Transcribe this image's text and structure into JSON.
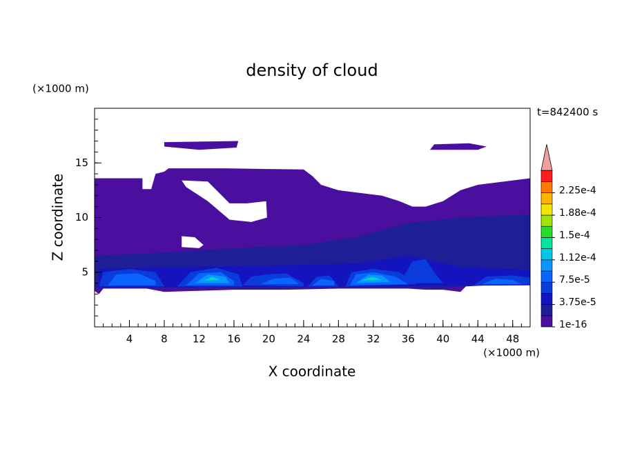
{
  "chart_data": {
    "type": "contour",
    "title": "density of cloud",
    "x_label": "X coordinate",
    "y_label": "Z coordinate",
    "x_unit": "(×1000 m)",
    "y_unit": "(×1000 m)",
    "time_label": "t=842400 s",
    "xlim": [
      0,
      50
    ],
    "ylim": [
      0,
      20
    ],
    "xticks": [
      4,
      8,
      12,
      16,
      20,
      24,
      28,
      32,
      36,
      40,
      44,
      48
    ],
    "yticks": [
      5,
      10,
      15
    ],
    "levels": [
      1e-16,
      1.875e-05,
      3.75e-05,
      5.625e-05,
      7.5e-05,
      9.375e-05,
      0.0001125,
      0.00013125,
      0.00015,
      0.00016875,
      0.0001875,
      0.00020625,
      0.000225,
      0.00024375
    ],
    "colors": [
      "#4b0fa0",
      "#1e1e96",
      "#1414be",
      "#0a3cdc",
      "#0a64ff",
      "#0a96ff",
      "#00c8e6",
      "#00e6a0",
      "#28dc28",
      "#a0e600",
      "#f0e600",
      "#ffb400",
      "#ff7800",
      "#ff1e1e"
    ],
    "extend_color": "#f0a0a0",
    "colorbar_ticks": [
      {
        "value": 1e-16,
        "label": "1e-16"
      },
      {
        "value": 3.75e-05,
        "label": "3.75e-5"
      },
      {
        "value": 7.5e-05,
        "label": "7.5e-5"
      },
      {
        "value": 0.0001125,
        "label": "1.12e-4"
      },
      {
        "value": 0.00015,
        "label": "1.5e-4"
      },
      {
        "value": 0.0001875,
        "label": "1.88e-4"
      },
      {
        "value": 0.000225,
        "label": "2.25e-4"
      }
    ],
    "regions": [
      {
        "value": 1e-16,
        "rings": [
          {
            "x": [
              0,
              0,
              5.5,
              5.5,
              6.5,
              7,
              8,
              8.5,
              15,
              24,
              25,
              26,
              28,
              31,
              33,
              35,
              36.5,
              38,
              40,
              42,
              44,
              47,
              50,
              50,
              43,
              42,
              40,
              38,
              36,
              28,
              22,
              16,
              8,
              6,
              1,
              0.5
            ],
            "z": [
              3.3,
              13.6,
              13.6,
              12.6,
              12.6,
              14,
              14.2,
              14.5,
              14.5,
              14.4,
              13.8,
              13,
              12.5,
              12.2,
              12,
              11.5,
              11,
              11,
              11.5,
              12.5,
              13,
              13.3,
              13.6,
              4.4,
              4,
              3.2,
              3.4,
              3.4,
              3.5,
              3.5,
              3.4,
              3.4,
              3.2,
              3.5,
              3.5,
              3
            ]
          },
          {
            "x": [
              10,
              13,
              15.5,
              17.5,
              19.7,
              19.8,
              18,
              15.5,
              13,
              10.5
            ],
            "z": [
              13.4,
              13.3,
              11.3,
              11.3,
              11.5,
              10,
              9.6,
              9.8,
              11.5,
              12.8
            ]
          },
          {
            "x": [
              10,
              10,
              11.5,
              12.5,
              12
            ],
            "z": [
              7.3,
              8.3,
              8.2,
              7.5,
              7.2
            ]
          }
        ]
      },
      {
        "value": 1e-16,
        "rings": [
          {
            "x": [
              8,
              8,
              16.5,
              16.3,
              12
            ],
            "z": [
              16.5,
              16.9,
              17,
              16.4,
              16.2
            ]
          }
        ]
      },
      {
        "value": 1e-16,
        "rings": [
          {
            "x": [
              38.5,
              39,
              43,
              45,
              44
            ],
            "z": [
              16.2,
              16.7,
              16.8,
              16.5,
              16.2
            ]
          }
        ]
      },
      {
        "value": 1.875e-05,
        "rings": [
          {
            "x": [
              0,
              0,
              8,
              16,
              24,
              30,
              36,
              42,
              50,
              50,
              40
            ],
            "z": [
              3.6,
              6.5,
              6.8,
              7.2,
              7.5,
              8.2,
              9.5,
              10,
              10.3,
              4,
              3.6
            ]
          }
        ]
      },
      {
        "value": 3.75e-05,
        "rings": [
          {
            "x": [
              0.5,
              0.5,
              10,
              20,
              30,
              36,
              42,
              50,
              50
            ],
            "z": [
              3.6,
              5.3,
              5.5,
              5.6,
              5.8,
              6.5,
              5.5,
              5.2,
              3.8
            ]
          }
        ]
      },
      {
        "value": 5.625e-05,
        "rings": [
          {
            "x": [
              0.5,
              1,
              4,
              7,
              8
            ],
            "z": [
              3.7,
              5,
              5.3,
              5,
              3.7
            ]
          }
        ]
      },
      {
        "value": 5.625e-05,
        "rings": [
          {
            "x": [
              9.5,
              11,
              14,
              16.5,
              17
            ],
            "z": [
              3.7,
              5,
              5.4,
              4.8,
              3.7
            ]
          }
        ]
      },
      {
        "value": 5.625e-05,
        "rings": [
          {
            "x": [
              17,
              18,
              20,
              22,
              24,
              24
            ],
            "z": [
              3.8,
              4.6,
              4.8,
              4.9,
              4,
              3.7
            ]
          }
        ]
      },
      {
        "value": 5.625e-05,
        "rings": [
          {
            "x": [
              24.5,
              25.5,
              27,
              28
            ],
            "z": [
              3.7,
              4.6,
              4.7,
              3.7
            ]
          }
        ]
      },
      {
        "value": 5.625e-05,
        "rings": [
          {
            "x": [
              28.8,
              29.5,
              32,
              35,
              37
            ],
            "z": [
              3.7,
              5,
              5.3,
              5,
              3.9
            ]
          }
        ]
      },
      {
        "value": 5.625e-05,
        "rings": [
          {
            "x": [
              35,
              36.5,
              38,
              39,
              40
            ],
            "z": [
              4,
              6,
              6.2,
              5,
              4
            ]
          }
        ]
      },
      {
        "value": 5.625e-05,
        "rings": [
          {
            "x": [
              43.5,
              45,
              48,
              50,
              50
            ],
            "z": [
              3.8,
              4.6,
              4.7,
              4.5,
              3.9
            ]
          }
        ]
      },
      {
        "value": 7.5e-05,
        "rings": [
          {
            "x": [
              1.5,
              2.5,
              5,
              7,
              7
            ],
            "z": [
              3.8,
              4.8,
              4.9,
              4.2,
              3.8
            ]
          }
        ]
      },
      {
        "value": 7.5e-05,
        "rings": [
          {
            "x": [
              10.5,
              12,
              14.5,
              16,
              16
            ],
            "z": [
              3.8,
              4.9,
              5,
              4.2,
              3.8
            ]
          }
        ]
      },
      {
        "value": 7.5e-05,
        "rings": [
          {
            "x": [
              19,
              20.5,
              22.5,
              23.5
            ],
            "z": [
              3.9,
              4.4,
              4.5,
              3.9
            ]
          }
        ]
      },
      {
        "value": 7.5e-05,
        "rings": [
          {
            "x": [
              25,
              26,
              27.5,
              27.5
            ],
            "z": [
              3.8,
              4.4,
              4.2,
              3.8
            ]
          }
        ]
      },
      {
        "value": 7.5e-05,
        "rings": [
          {
            "x": [
              29.3,
              30,
              32,
              34.5,
              36
            ],
            "z": [
              3.8,
              4.8,
              5,
              4.6,
              3.9
            ]
          }
        ]
      },
      {
        "value": 7.5e-05,
        "rings": [
          {
            "x": [
              44.5,
              46,
              48,
              49
            ],
            "z": [
              3.9,
              4.4,
              4.3,
              3.9
            ]
          }
        ]
      },
      {
        "value": 9.375e-05,
        "rings": [
          {
            "x": [
              11.5,
              13,
              15,
              15.5
            ],
            "z": [
              4,
              4.8,
              4.6,
              4
            ]
          }
        ]
      },
      {
        "value": 9.375e-05,
        "rings": [
          {
            "x": [
              30,
              31.5,
              33,
              34
            ],
            "z": [
              4,
              4.8,
              4.7,
              4.1
            ]
          }
        ]
      },
      {
        "value": 0.0001125,
        "rings": [
          {
            "x": [
              12.5,
              13.5,
              14.5
            ],
            "z": [
              4.2,
              4.6,
              4.3
            ]
          }
        ]
      },
      {
        "value": 0.0001125,
        "rings": [
          {
            "x": [
              30.5,
              31.8,
              33
            ],
            "z": [
              4.2,
              4.6,
              4.3
            ]
          }
        ]
      },
      {
        "value": 0.00013125,
        "rings": [
          {
            "x": [
              13,
              13.5,
              14
            ],
            "z": [
              4.35,
              4.5,
              4.35
            ]
          }
        ]
      },
      {
        "value": 0.00013125,
        "rings": [
          {
            "x": [
              31.3,
              32,
              32.6
            ],
            "z": [
              4.35,
              4.5,
              4.35
            ]
          }
        ]
      }
    ]
  }
}
